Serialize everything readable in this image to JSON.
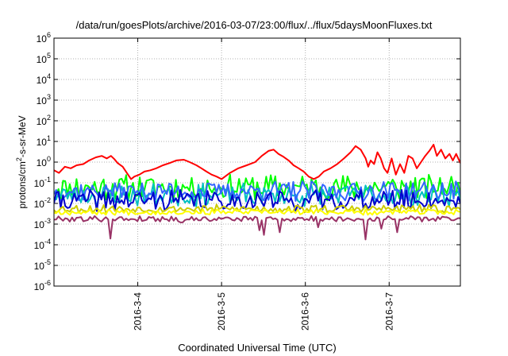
{
  "chart_data": {
    "type": "line",
    "title": "/data/run/goesPlots/archive/2016-03-07/23:00/flux/../flux/5daysMoonFluxes.txt",
    "xlabel": "Coordinated Universal Time (UTC)",
    "ylabel": {
      "base": "protons/cm",
      "sup": "2",
      "rest": "-s-sr-MeV"
    },
    "x_ticks": [
      "2016-3-4",
      "2016-3-5",
      "2016-3-6",
      "2016-3-7"
    ],
    "x_tick_days": [
      1,
      2,
      3,
      4
    ],
    "xlim_days": [
      0,
      4.85
    ],
    "y_scale": "log",
    "ylim_exp": [
      -6,
      6
    ],
    "y_ticks": [
      {
        "base": "10",
        "exp": "6"
      },
      {
        "base": "10",
        "exp": "5"
      },
      {
        "base": "10",
        "exp": "4"
      },
      {
        "base": "10",
        "exp": "3"
      },
      {
        "base": "10",
        "exp": "2"
      },
      {
        "base": "10",
        "exp": "1"
      },
      {
        "base": "10",
        "exp": "0"
      },
      {
        "base": "10",
        "exp": "-1"
      },
      {
        "base": "10",
        "exp": "-2"
      },
      {
        "base": "10",
        "exp": "-3"
      },
      {
        "base": "10",
        "exp": "-4"
      },
      {
        "base": "10",
        "exp": "-5"
      },
      {
        "base": "10",
        "exp": "-6"
      }
    ],
    "grid": true,
    "series": [
      {
        "color": "#ff0000",
        "width": 2,
        "x": [
          0,
          0.06,
          0.13,
          0.2,
          0.27,
          0.35,
          0.42,
          0.5,
          0.57,
          0.63,
          0.68,
          0.72,
          0.76,
          0.82,
          0.87,
          0.92,
          0.96,
          1.02,
          1.08,
          1.15,
          1.22,
          1.3,
          1.38,
          1.46,
          1.55,
          1.62,
          1.7,
          1.76,
          1.82,
          1.88,
          1.94,
          2.0,
          2.1,
          2.2,
          2.3,
          2.4,
          2.48,
          2.56,
          2.62,
          2.68,
          2.74,
          2.8,
          2.86,
          2.92,
          2.98,
          3.04,
          3.1,
          3.16,
          3.22,
          3.3,
          3.38,
          3.46,
          3.54,
          3.6,
          3.66,
          3.72,
          3.75,
          3.78,
          3.82,
          3.86,
          3.9,
          3.94,
          3.98,
          4.03,
          4.08,
          4.13,
          4.18,
          4.23,
          4.28,
          4.33,
          4.38,
          4.43,
          4.48,
          4.53,
          4.57,
          4.62,
          4.67,
          4.72,
          4.76,
          4.8,
          4.85
        ],
        "y": [
          0.4,
          0.3,
          0.6,
          0.5,
          0.7,
          0.8,
          1.2,
          1.7,
          2.0,
          1.5,
          2.0,
          1.4,
          0.9,
          0.6,
          0.3,
          0.15,
          0.2,
          0.25,
          0.35,
          0.4,
          0.5,
          0.7,
          0.9,
          1.2,
          1.3,
          1.0,
          0.7,
          0.5,
          0.35,
          0.25,
          0.2,
          0.15,
          0.3,
          0.5,
          0.7,
          1.0,
          2.0,
          3.5,
          4.0,
          2.5,
          1.8,
          1.2,
          0.7,
          0.5,
          0.35,
          0.2,
          0.15,
          0.2,
          0.35,
          0.5,
          0.8,
          1.5,
          3.0,
          6.0,
          4.0,
          1.5,
          0.6,
          1.2,
          0.8,
          3.0,
          1.5,
          0.5,
          0.3,
          1.5,
          0.25,
          0.8,
          0.3,
          2.0,
          1.5,
          0.5,
          1.0,
          2.0,
          3.5,
          7.0,
          2.0,
          4.0,
          1.5,
          2.5,
          1.2,
          2.5,
          0.9
        ]
      },
      {
        "color": "#00ff00",
        "width": 2,
        "base": 0.06,
        "amp": 0.55,
        "seed": 11
      },
      {
        "color": "#00c0c0",
        "width": 2,
        "base": 0.025,
        "amp": 0.5,
        "seed": 23
      },
      {
        "color": "#3366ff",
        "width": 2,
        "base": 0.04,
        "amp": 0.45,
        "seed": 37
      },
      {
        "color": "#0000cc",
        "width": 2,
        "base": 0.014,
        "amp": 0.45,
        "seed": 41
      },
      {
        "color": "#cccc00",
        "width": 2,
        "base": 0.0055,
        "amp": 0.18,
        "seed": 53
      },
      {
        "color": "#ffff00",
        "width": 2,
        "base": 0.0038,
        "amp": 0.12,
        "seed": 67
      },
      {
        "color": "#993366",
        "width": 2,
        "base": 0.0018,
        "amp": 0.12,
        "seed": 79,
        "dips": [
          [
            0.68,
            0.0002
          ],
          [
            1.52,
            0.0012
          ],
          [
            2.45,
            0.0005
          ],
          [
            2.5,
            0.0003
          ],
          [
            2.7,
            0.0004
          ],
          [
            3.15,
            0.0007
          ],
          [
            3.72,
            0.00018
          ],
          [
            3.9,
            0.0006
          ],
          [
            4.1,
            0.0004
          ]
        ]
      }
    ]
  }
}
